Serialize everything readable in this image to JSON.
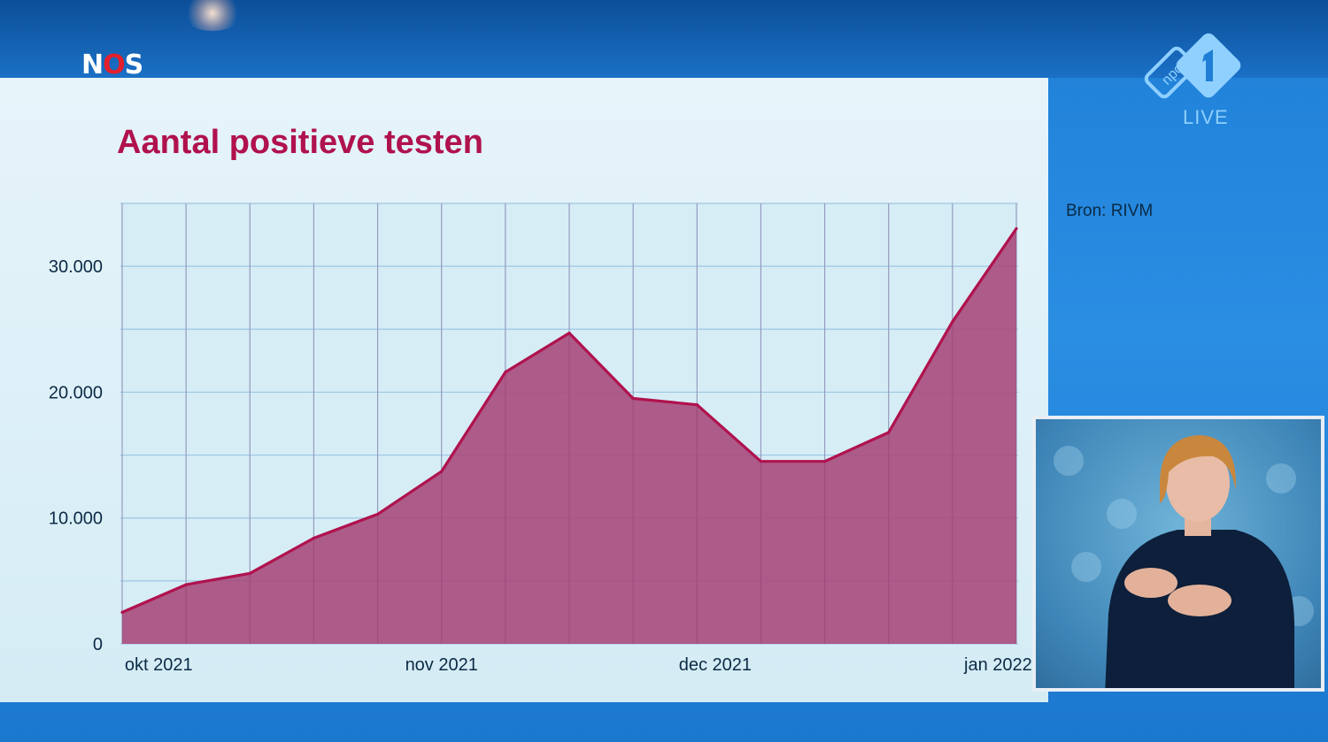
{
  "broadcaster": {
    "logo_left": "N",
    "logo_o": "O",
    "logo_right": "S",
    "channel": "npo 1",
    "live_label": "LIVE"
  },
  "source_label": "Bron: RIVM",
  "colors": {
    "accent": "#b0124e",
    "fill": "#a94a7c",
    "panel": "#e2f2f9"
  },
  "icons": {
    "channel_logo": "npo1-logo-icon",
    "interpreter": "sign-language-interpreter-icon"
  },
  "chart_data": {
    "type": "area",
    "title": "Aantal positieve testen",
    "xlabel": "",
    "ylabel": "",
    "x_tick_labels": [
      "okt 2021",
      "nov 2021",
      "dec 2021",
      "jan 2022"
    ],
    "y_ticks": [
      "0",
      "10.000",
      "20.000",
      "30.000"
    ],
    "ylim": [
      0,
      35000
    ],
    "grid": true,
    "x": [
      "2021-09-27",
      "2021-10-04",
      "2021-10-11",
      "2021-10-18",
      "2021-10-25",
      "2021-11-01",
      "2021-11-08",
      "2021-11-15",
      "2021-11-22",
      "2021-11-29",
      "2021-12-06",
      "2021-12-13",
      "2021-12-20",
      "2021-12-27",
      "2022-01-03"
    ],
    "series": [
      {
        "values": [
          2500,
          4700,
          5600,
          8400,
          10300,
          13700,
          21600,
          24700,
          19500,
          19000,
          14500,
          14500,
          16800,
          25600,
          33000
        ]
      }
    ]
  }
}
